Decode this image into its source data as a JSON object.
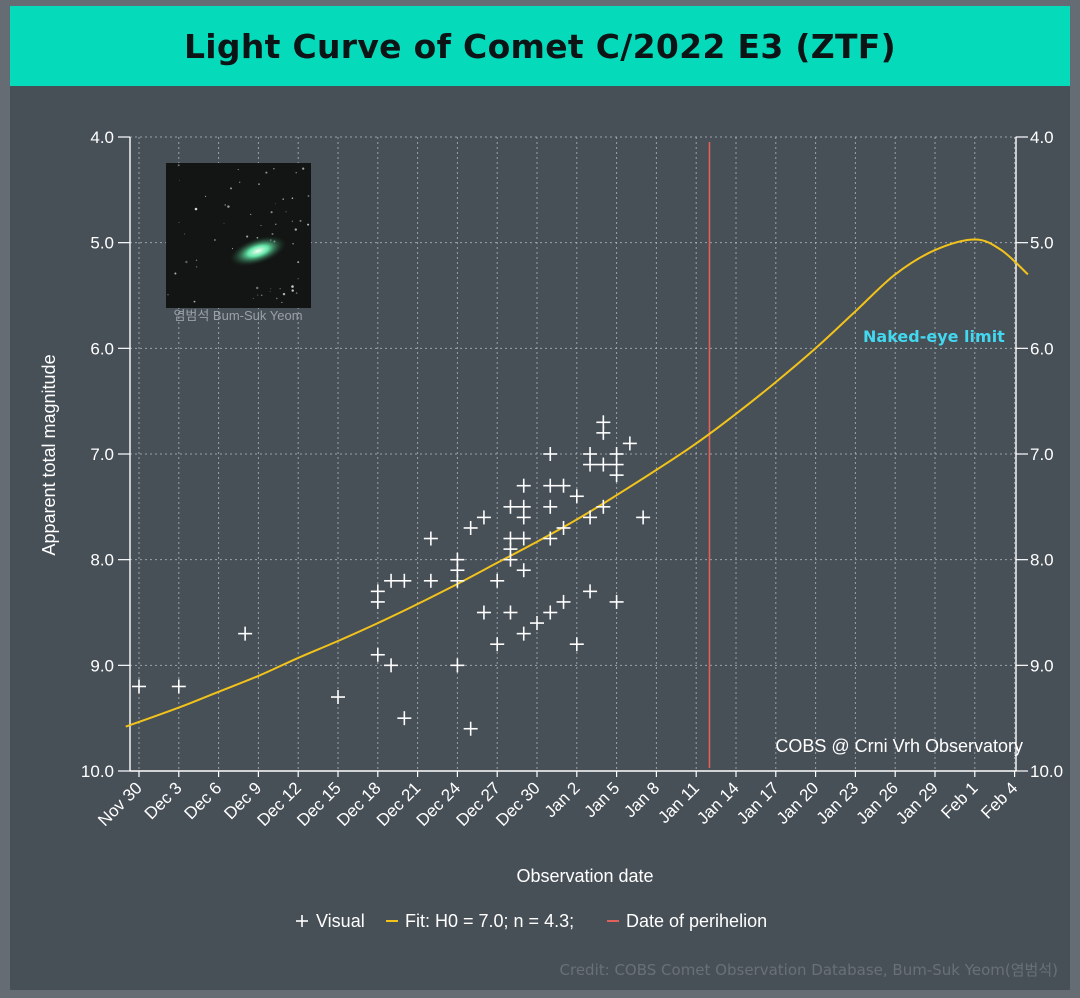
{
  "page": {
    "title": "Light Curve of Comet C/2022 E3 (ZTF)",
    "credit": "Credit: COBS Comet Observation Database, Bum-Suk Yeom(염범석)",
    "photo_caption": "염범석 Bum-Suk Yeom",
    "colors": {
      "header": "#05dbbb",
      "background": "#474f57",
      "fit_curve": "#f2c31b",
      "perihelion": "#e0605b",
      "naked_eye_text": "#43d8f0",
      "grid": "#b8bec4"
    }
  },
  "chart_data": {
    "type": "scatter",
    "title": "Light Curve of Comet C/2022 E3 (ZTF)",
    "xlabel": "Observation date",
    "ylabel": "Apparent total magnitude",
    "x_ticks": [
      "Nov 30",
      "Dec 3",
      "Dec 6",
      "Dec 9",
      "Dec 12",
      "Dec 15",
      "Dec 18",
      "Dec 21",
      "Dec 24",
      "Dec 27",
      "Dec 30",
      "Jan 2",
      "Jan 5",
      "Jan 8",
      "Jan 11",
      "Jan 14",
      "Jan 17",
      "Jan 20",
      "Jan 23",
      "Jan 26",
      "Jan 29",
      "Feb 1",
      "Feb 4"
    ],
    "y_ticks": [
      "4.0",
      "5.0",
      "6.0",
      "7.0",
      "8.0",
      "9.0",
      "10.0"
    ],
    "ylim": [
      4.0,
      10.0
    ],
    "y_inverted": true,
    "grid": true,
    "legend_position": "bottom",
    "legend": {
      "visual": "Visual",
      "fit": "Fit: H0 = 7.0; n = 4.3;",
      "perihelion": "Date of perihelion"
    },
    "annotations": {
      "naked_eye": "Naked-eye limit",
      "source": "COBS @ Crni Vrh Observatory"
    },
    "perihelion_date": "2023-01-12",
    "fit_curve": [
      {
        "x": "2022-11-29",
        "y": 9.58
      },
      {
        "x": "2022-12-03",
        "y": 9.4
      },
      {
        "x": "2022-12-06",
        "y": 9.25
      },
      {
        "x": "2022-12-09",
        "y": 9.1
      },
      {
        "x": "2022-12-12",
        "y": 8.93
      },
      {
        "x": "2022-12-15",
        "y": 8.77
      },
      {
        "x": "2022-12-18",
        "y": 8.6
      },
      {
        "x": "2022-12-21",
        "y": 8.42
      },
      {
        "x": "2022-12-24",
        "y": 8.23
      },
      {
        "x": "2022-12-27",
        "y": 8.03
      },
      {
        "x": "2022-12-30",
        "y": 7.83
      },
      {
        "x": "2023-01-02",
        "y": 7.62
      },
      {
        "x": "2023-01-05",
        "y": 7.39
      },
      {
        "x": "2023-01-08",
        "y": 7.15
      },
      {
        "x": "2023-01-11",
        "y": 6.9
      },
      {
        "x": "2023-01-14",
        "y": 6.62
      },
      {
        "x": "2023-01-17",
        "y": 6.32
      },
      {
        "x": "2023-01-20",
        "y": 6.0
      },
      {
        "x": "2023-01-23",
        "y": 5.65
      },
      {
        "x": "2023-01-26",
        "y": 5.3
      },
      {
        "x": "2023-01-29",
        "y": 5.07
      },
      {
        "x": "2023-02-01",
        "y": 4.97
      },
      {
        "x": "2023-02-03",
        "y": 5.07
      },
      {
        "x": "2023-02-05",
        "y": 5.3
      }
    ],
    "series": [
      {
        "name": "Visual",
        "points": [
          {
            "x": "2022-11-30",
            "y": 9.2
          },
          {
            "x": "2022-12-03",
            "y": 9.2
          },
          {
            "x": "2022-12-08",
            "y": 8.7
          },
          {
            "x": "2022-12-15",
            "y": 9.3
          },
          {
            "x": "2022-12-18",
            "y": 8.3
          },
          {
            "x": "2022-12-18",
            "y": 8.4
          },
          {
            "x": "2022-12-18",
            "y": 8.9
          },
          {
            "x": "2022-12-19",
            "y": 9.0
          },
          {
            "x": "2022-12-19",
            "y": 8.2
          },
          {
            "x": "2022-12-20",
            "y": 8.2
          },
          {
            "x": "2022-12-20",
            "y": 9.5
          },
          {
            "x": "2022-12-22",
            "y": 7.8
          },
          {
            "x": "2022-12-22",
            "y": 8.2
          },
          {
            "x": "2022-12-24",
            "y": 9.0
          },
          {
            "x": "2022-12-24",
            "y": 8.0
          },
          {
            "x": "2022-12-24",
            "y": 8.1
          },
          {
            "x": "2022-12-24",
            "y": 8.2
          },
          {
            "x": "2022-12-25",
            "y": 7.7
          },
          {
            "x": "2022-12-25",
            "y": 9.6
          },
          {
            "x": "2022-12-26",
            "y": 7.6
          },
          {
            "x": "2022-12-26",
            "y": 8.5
          },
          {
            "x": "2022-12-27",
            "y": 8.2
          },
          {
            "x": "2022-12-27",
            "y": 8.8
          },
          {
            "x": "2022-12-28",
            "y": 7.5
          },
          {
            "x": "2022-12-28",
            "y": 7.8
          },
          {
            "x": "2022-12-28",
            "y": 7.9
          },
          {
            "x": "2022-12-28",
            "y": 8.0
          },
          {
            "x": "2022-12-28",
            "y": 8.5
          },
          {
            "x": "2022-12-29",
            "y": 7.3
          },
          {
            "x": "2022-12-29",
            "y": 7.5
          },
          {
            "x": "2022-12-29",
            "y": 7.6
          },
          {
            "x": "2022-12-29",
            "y": 7.8
          },
          {
            "x": "2022-12-29",
            "y": 8.1
          },
          {
            "x": "2022-12-29",
            "y": 8.7
          },
          {
            "x": "2022-12-30",
            "y": 8.6
          },
          {
            "x": "2022-12-31",
            "y": 8.5
          },
          {
            "x": "2022-12-31",
            "y": 7.8
          },
          {
            "x": "2022-12-31",
            "y": 7.5
          },
          {
            "x": "2022-12-31",
            "y": 7.3
          },
          {
            "x": "2022-12-31",
            "y": 7.0
          },
          {
            "x": "2023-01-01",
            "y": 7.3
          },
          {
            "x": "2023-01-01",
            "y": 8.4
          },
          {
            "x": "2023-01-01",
            "y": 7.7
          },
          {
            "x": "2023-01-02",
            "y": 7.4
          },
          {
            "x": "2023-01-02",
            "y": 8.8
          },
          {
            "x": "2023-01-03",
            "y": 7.6
          },
          {
            "x": "2023-01-03",
            "y": 7.1
          },
          {
            "x": "2023-01-03",
            "y": 7.0
          },
          {
            "x": "2023-01-03",
            "y": 8.3
          },
          {
            "x": "2023-01-04",
            "y": 7.1
          },
          {
            "x": "2023-01-04",
            "y": 7.5
          },
          {
            "x": "2023-01-04",
            "y": 6.7
          },
          {
            "x": "2023-01-04",
            "y": 6.8
          },
          {
            "x": "2023-01-05",
            "y": 7.0
          },
          {
            "x": "2023-01-05",
            "y": 7.1
          },
          {
            "x": "2023-01-05",
            "y": 7.2
          },
          {
            "x": "2023-01-05",
            "y": 8.4
          },
          {
            "x": "2023-01-06",
            "y": 6.9
          },
          {
            "x": "2023-01-07",
            "y": 7.6
          }
        ]
      }
    ]
  }
}
